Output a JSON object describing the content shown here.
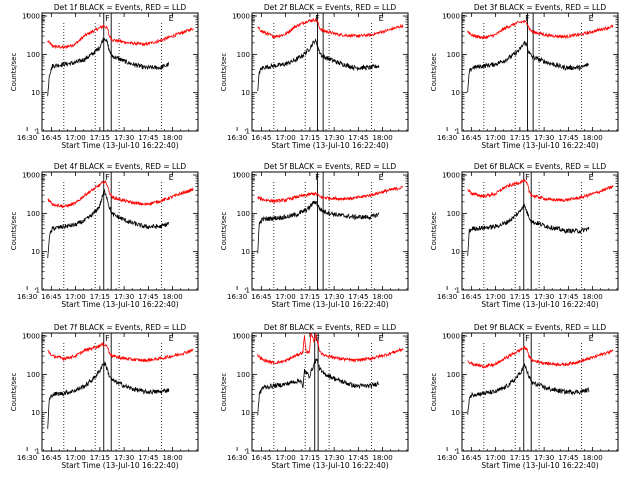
{
  "chart_data": [
    {
      "type": "line",
      "title": "Det 1f BLACK = Events, RED = LLD",
      "xlabel": "Start Time (13-Jul-10 16:22:40)",
      "ylabel": "Counts/sec",
      "x_tick_labels": [
        "16:30",
        "16:45",
        "17:00",
        "17:15",
        "17:30",
        "17:45",
        "18:00"
      ],
      "y_tick_labels": [
        "1",
        "10",
        "100",
        "1000"
      ],
      "xlim_minutes": [
        16.5,
        113.0
      ],
      "ylim": [
        1,
        1200
      ],
      "yscale": "log",
      "markers": [
        "E",
        "F",
        "E"
      ],
      "series": [
        {
          "color": "#ff0000",
          "x": [
            20,
            23,
            30,
            37,
            43,
            50,
            55,
            57,
            58,
            60,
            70,
            80,
            90,
            100,
            110
          ],
          "y": [
            220,
            165,
            150,
            185,
            310,
            440,
            560,
            470,
            310,
            240,
            200,
            180,
            230,
            330,
            470
          ]
        },
        {
          "color": "#000000",
          "x": [
            20,
            21,
            23,
            30,
            37,
            43,
            48,
            52,
            54,
            55,
            56,
            57,
            58,
            60,
            70,
            80,
            90,
            95
          ],
          "y": [
            8,
            30,
            50,
            55,
            60,
            75,
            105,
            150,
            230,
            270,
            250,
            190,
            130,
            90,
            60,
            45,
            45,
            55
          ]
        }
      ],
      "vlines_dotted_minutes": [
        30,
        49.4,
        64.2,
        90.5
      ],
      "vlines_solid_minutes": [
        54.7,
        59.3
      ]
    },
    {
      "type": "line",
      "title": "Det 2f BLACK = Events, RED = LLD",
      "xlabel": "Start Time (13-Jul-10 16:22:40)",
      "ylabel": "Counts/sec",
      "x_tick_labels": [
        "16:30",
        "16:45",
        "17:00",
        "17:15",
        "17:30",
        "17:45",
        "18:00"
      ],
      "y_tick_labels": [
        "1",
        "10",
        "100",
        "1000"
      ],
      "xlim_minutes": [
        16.5,
        113.0
      ],
      "ylim": [
        1,
        1200
      ],
      "yscale": "log",
      "markers": [
        "E",
        "F",
        "E"
      ],
      "series": [
        {
          "color": "#ff0000",
          "x": [
            20,
            23,
            30,
            37,
            43,
            50,
            55,
            57,
            58,
            60,
            70,
            80,
            90,
            100,
            110
          ],
          "y": [
            500,
            390,
            290,
            330,
            520,
            720,
            800,
            720,
            520,
            420,
            330,
            300,
            320,
            420,
            560
          ]
        },
        {
          "color": "#000000",
          "x": [
            20,
            21,
            23,
            30,
            37,
            43,
            48,
            52,
            54,
            55,
            56,
            57,
            58,
            60,
            70,
            80,
            90,
            95
          ],
          "y": [
            10,
            35,
            45,
            50,
            55,
            70,
            95,
            140,
            190,
            220,
            215,
            170,
            120,
            90,
            60,
            45,
            45,
            50
          ]
        }
      ],
      "vlines_dotted_minutes": [
        30,
        49.4,
        64.2,
        90.5
      ],
      "vlines_solid_minutes": [
        57.0,
        60.5
      ]
    },
    {
      "type": "line",
      "title": "Det 3f BLACK = Events, RED = LLD",
      "xlabel": "Start Time (13-Jul-10 16:22:40)",
      "ylabel": "Counts/sec",
      "x_tick_labels": [
        "16:30",
        "16:45",
        "17:00",
        "17:15",
        "17:30",
        "17:45",
        "18:00"
      ],
      "y_tick_labels": [
        "1",
        "10",
        "100",
        "1000"
      ],
      "xlim_minutes": [
        16.5,
        113.0
      ],
      "ylim": [
        1,
        1200
      ],
      "yscale": "log",
      "markers": [
        "E",
        "F",
        "E"
      ],
      "series": [
        {
          "color": "#ff0000",
          "x": [
            20,
            23,
            30,
            37,
            43,
            50,
            55,
            57,
            58,
            60,
            70,
            80,
            90,
            100,
            110
          ],
          "y": [
            400,
            310,
            270,
            320,
            480,
            650,
            720,
            650,
            480,
            390,
            310,
            290,
            330,
            420,
            540
          ]
        },
        {
          "color": "#000000",
          "x": [
            20,
            21,
            23,
            30,
            37,
            43,
            48,
            52,
            54,
            55,
            56,
            57,
            58,
            60,
            70,
            80,
            90,
            95
          ],
          "y": [
            10,
            35,
            45,
            50,
            55,
            70,
            95,
            130,
            170,
            200,
            190,
            150,
            110,
            85,
            60,
            45,
            45,
            55
          ]
        }
      ],
      "vlines_dotted_minutes": [
        30,
        49.4,
        64.2,
        90.5
      ],
      "vlines_solid_minutes": [
        57.0,
        60.5
      ]
    },
    {
      "type": "line",
      "title": "Det 4f BLACK = Events, RED = LLD",
      "xlabel": "Start Time (13-Jul-10 16:22:40)",
      "ylabel": "Counts/sec",
      "x_tick_labels": [
        "16:30",
        "16:45",
        "17:00",
        "17:15",
        "17:30",
        "17:45",
        "18:00"
      ],
      "y_tick_labels": [
        "1",
        "10",
        "100",
        "1000"
      ],
      "xlim_minutes": [
        16.5,
        113.0
      ],
      "ylim": [
        1,
        1200
      ],
      "yscale": "log",
      "markers": [
        "E",
        "F",
        "E"
      ],
      "series": [
        {
          "color": "#ff0000",
          "x": [
            20,
            23,
            30,
            37,
            43,
            50,
            55,
            57,
            58,
            60,
            70,
            80,
            90,
            100,
            110
          ],
          "y": [
            240,
            175,
            150,
            180,
            300,
            470,
            680,
            560,
            360,
            260,
            200,
            170,
            210,
            300,
            420
          ]
        },
        {
          "color": "#000000",
          "x": [
            20,
            21,
            23,
            30,
            37,
            43,
            48,
            52,
            54,
            55,
            56,
            57,
            58,
            60,
            70,
            80,
            90,
            95
          ],
          "y": [
            6,
            25,
            40,
            45,
            50,
            65,
            95,
            150,
            280,
            380,
            330,
            230,
            150,
            95,
            60,
            45,
            45,
            55
          ]
        }
      ],
      "vlines_dotted_minutes": [
        30,
        49.4,
        64.2,
        90.5
      ],
      "vlines_solid_minutes": [
        54.7,
        59.3
      ]
    },
    {
      "type": "line",
      "title": "Det 5f BLACK = Events, RED = LLD",
      "xlabel": "Start Time (13-Jul-10 16:22:40)",
      "ylabel": "Counts/sec",
      "x_tick_labels": [
        "16:30",
        "16:45",
        "17:00",
        "17:15",
        "17:30",
        "17:45",
        "18:00"
      ],
      "y_tick_labels": [
        "1",
        "10",
        "100",
        "1000"
      ],
      "xlim_minutes": [
        16.5,
        113.0
      ],
      "ylim": [
        1,
        1200
      ],
      "yscale": "log",
      "markers": [
        "E",
        "F",
        "E"
      ],
      "series": [
        {
          "color": "#ff0000",
          "x": [
            20,
            23,
            30,
            37,
            43,
            50,
            55,
            57,
            58,
            60,
            70,
            80,
            90,
            100,
            110
          ],
          "y": [
            260,
            230,
            210,
            220,
            260,
            300,
            330,
            310,
            280,
            260,
            240,
            250,
            300,
            390,
            480
          ]
        },
        {
          "color": "#000000",
          "x": [
            20,
            21,
            23,
            30,
            37,
            43,
            48,
            52,
            54,
            55,
            56,
            57,
            58,
            60,
            70,
            80,
            90,
            95
          ],
          "y": [
            10,
            55,
            70,
            75,
            80,
            90,
            110,
            140,
            180,
            200,
            195,
            170,
            140,
            115,
            90,
            80,
            80,
            95
          ]
        }
      ],
      "vlines_dotted_minutes": [
        30,
        49.4,
        64.2,
        90.5
      ],
      "vlines_solid_minutes": [
        57.0,
        60.5
      ]
    },
    {
      "type": "line",
      "title": "Det 6f BLACK = Events, RED = LLD",
      "xlabel": "Start Time (13-Jul-10 16:22:40)",
      "ylabel": "Counts/sec",
      "x_tick_labels": [
        "16:30",
        "16:45",
        "17:00",
        "17:15",
        "17:30",
        "17:45",
        "18:00"
      ],
      "y_tick_labels": [
        "1",
        "10",
        "100",
        "1000"
      ],
      "xlim_minutes": [
        16.5,
        113.0
      ],
      "ylim": [
        1,
        1200
      ],
      "yscale": "log",
      "markers": [
        "E",
        "F",
        "E"
      ],
      "series": [
        {
          "color": "#ff0000",
          "x": [
            20,
            23,
            30,
            37,
            43,
            50,
            55,
            57,
            58,
            60,
            70,
            80,
            90,
            100,
            110
          ],
          "y": [
            420,
            320,
            280,
            320,
            480,
            600,
            720,
            560,
            380,
            290,
            230,
            220,
            260,
            350,
            500
          ]
        },
        {
          "color": "#000000",
          "x": [
            20,
            21,
            23,
            30,
            37,
            43,
            48,
            52,
            54,
            55,
            56,
            57,
            58,
            60,
            70,
            80,
            90,
            95
          ],
          "y": [
            8,
            35,
            40,
            42,
            45,
            55,
            75,
            110,
            150,
            160,
            130,
            100,
            80,
            60,
            45,
            35,
            35,
            40
          ]
        }
      ],
      "vlines_dotted_minutes": [
        30,
        49.4,
        64.2,
        90.5
      ],
      "vlines_solid_minutes": [
        54.7,
        59.3
      ]
    },
    {
      "type": "line",
      "title": "Det 7f BLACK = Events, RED = LLD",
      "xlabel": "Start Time (13-Jul-10 16:22:40)",
      "ylabel": "Counts/sec",
      "x_tick_labels": [
        "16:30",
        "16:45",
        "17:00",
        "17:15",
        "17:30",
        "17:45",
        "18:00"
      ],
      "y_tick_labels": [
        "1",
        "10",
        "100",
        "1000"
      ],
      "xlim_minutes": [
        16.5,
        113.0
      ],
      "ylim": [
        1,
        1200
      ],
      "yscale": "log",
      "markers": [
        "E",
        "F",
        "E"
      ],
      "series": [
        {
          "color": "#ff0000",
          "x": [
            20,
            23,
            30,
            37,
            43,
            50,
            55,
            57,
            58,
            60,
            70,
            80,
            90,
            100,
            110
          ],
          "y": [
            420,
            300,
            260,
            300,
            420,
            520,
            620,
            530,
            380,
            300,
            250,
            230,
            260,
            320,
            430
          ]
        },
        {
          "color": "#000000",
          "x": [
            20,
            21,
            23,
            30,
            37,
            43,
            48,
            52,
            54,
            55,
            56,
            57,
            58,
            60,
            70,
            80,
            90,
            95
          ],
          "y": [
            4,
            22,
            30,
            32,
            38,
            50,
            75,
            120,
            180,
            200,
            170,
            130,
            95,
            70,
            45,
            35,
            35,
            40
          ]
        }
      ],
      "vlines_dotted_minutes": [
        30,
        49.4,
        64.2,
        90.5
      ],
      "vlines_solid_minutes": [
        54.7,
        59.3
      ]
    },
    {
      "type": "line",
      "title": "Det 8f BLACK = Events, RED = LLD",
      "xlabel": "Start Time (13-Jul-10 16:22:40)",
      "ylabel": "Counts/sec",
      "x_tick_labels": [
        "16:30",
        "16:45",
        "17:00",
        "17:15",
        "17:30",
        "17:45",
        "18:00"
      ],
      "y_tick_labels": [
        "1",
        "10",
        "100",
        "1000"
      ],
      "xlim_minutes": [
        16.5,
        113.0
      ],
      "ylim": [
        1,
        1200
      ],
      "yscale": "log",
      "markers": [
        "E",
        "F",
        "E"
      ],
      "series": [
        {
          "color": "#ff0000",
          "x": [
            20,
            23,
            30,
            37,
            43,
            48,
            49,
            50,
            52,
            53,
            55,
            56,
            58,
            60,
            70,
            80,
            90,
            100,
            110
          ],
          "y": [
            320,
            240,
            200,
            220,
            300,
            380,
            1100,
            360,
            400,
            1150,
            700,
            1150,
            450,
            330,
            260,
            230,
            260,
            330,
            460
          ]
        },
        {
          "color": "#000000",
          "x": [
            20,
            21,
            23,
            30,
            37,
            43,
            47,
            48,
            49,
            50,
            52,
            56,
            57,
            58,
            60,
            70,
            80,
            90,
            95
          ],
          "y": [
            8,
            30,
            45,
            50,
            55,
            65,
            70,
            40,
            130,
            110,
            90,
            240,
            220,
            150,
            110,
            70,
            50,
            50,
            60
          ]
        }
      ],
      "vlines_dotted_minutes": [
        30,
        49.4,
        64.2,
        90.5
      ],
      "vlines_solid_minutes": [
        55.3,
        57.4
      ]
    },
    {
      "type": "line",
      "title": "Det 9f BLACK = Events, RED = LLD",
      "xlabel": "Start Time (13-Jul-10 16:22:40)",
      "ylabel": "Counts/sec",
      "x_tick_labels": [
        "16:30",
        "16:45",
        "17:00",
        "17:15",
        "17:30",
        "17:45",
        "18:00"
      ],
      "y_tick_labels": [
        "1",
        "10",
        "100",
        "1000"
      ],
      "xlim_minutes": [
        16.5,
        113.0
      ],
      "ylim": [
        1,
        1200
      ],
      "yscale": "log",
      "markers": [
        "E",
        "F",
        "E"
      ],
      "series": [
        {
          "color": "#ff0000",
          "x": [
            20,
            23,
            30,
            37,
            43,
            50,
            55,
            57,
            58,
            60,
            70,
            80,
            90,
            100,
            110
          ],
          "y": [
            230,
            185,
            160,
            180,
            260,
            380,
            500,
            430,
            290,
            230,
            190,
            180,
            220,
            300,
            420
          ]
        },
        {
          "color": "#000000",
          "x": [
            20,
            21,
            23,
            30,
            37,
            43,
            48,
            52,
            54,
            55,
            56,
            57,
            58,
            60,
            70,
            80,
            90,
            95
          ],
          "y": [
            8,
            25,
            30,
            32,
            35,
            45,
            65,
            100,
            140,
            170,
            150,
            110,
            85,
            60,
            42,
            35,
            35,
            40
          ]
        }
      ],
      "vlines_dotted_minutes": [
        30,
        49.4,
        64.2,
        90.5
      ],
      "vlines_solid_minutes": [
        54.7,
        59.3
      ]
    }
  ]
}
